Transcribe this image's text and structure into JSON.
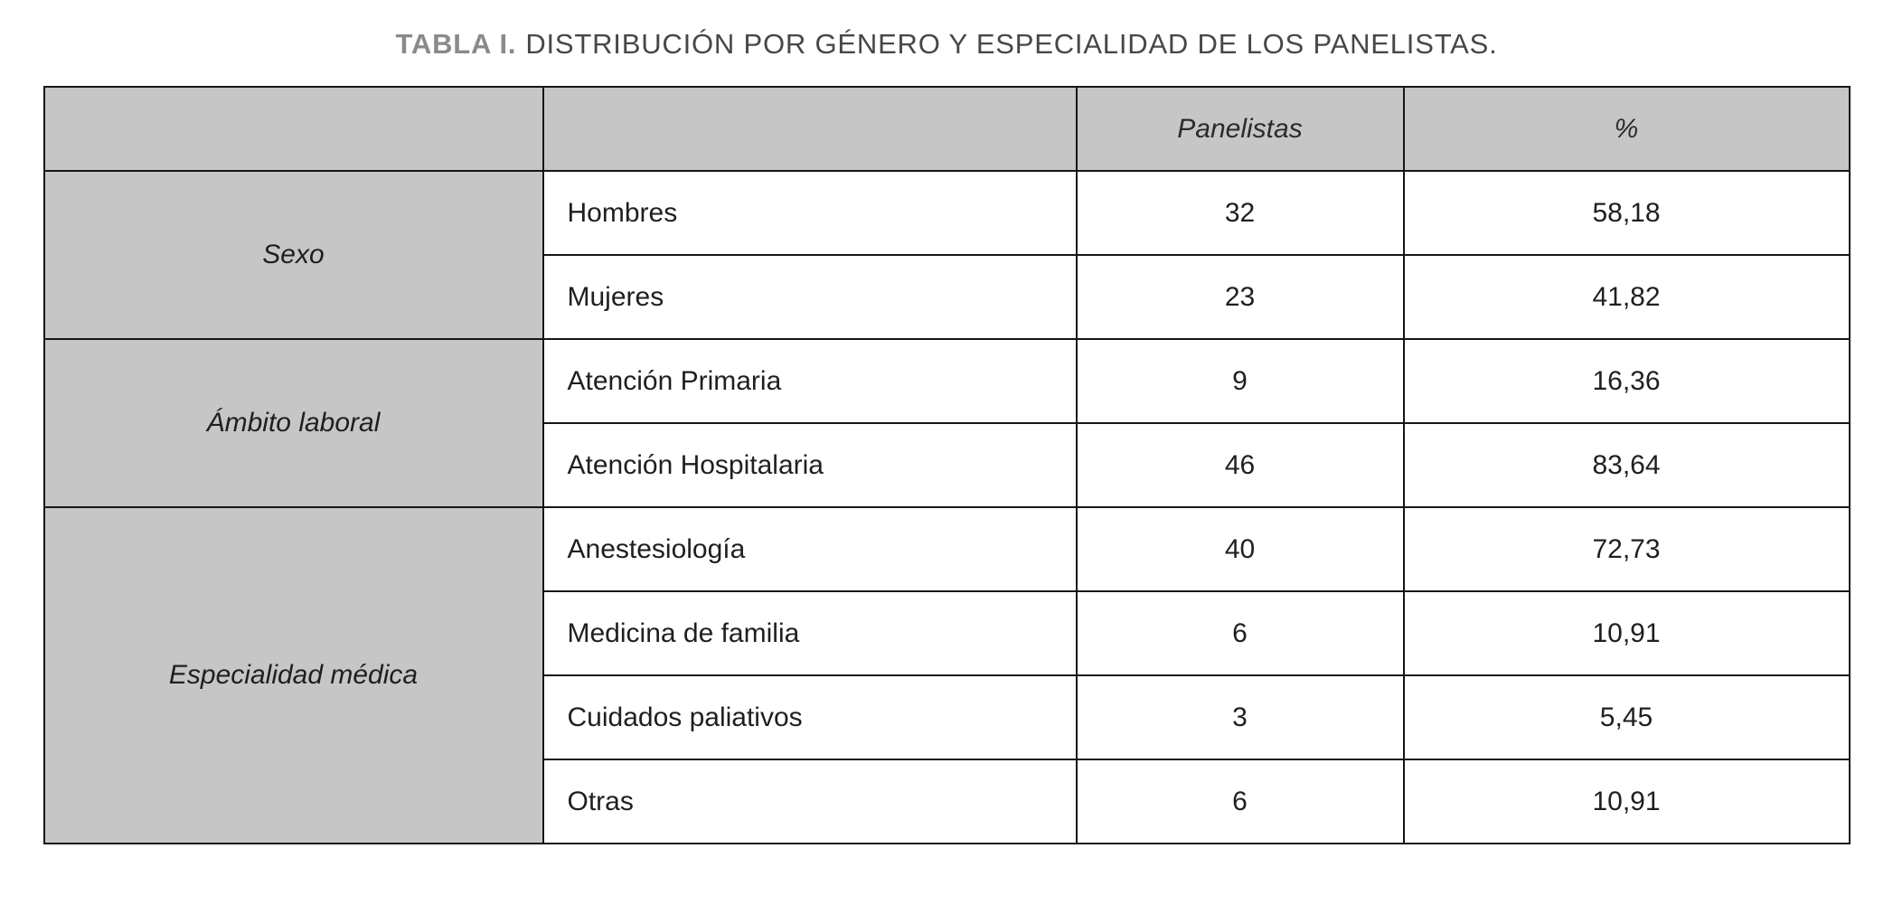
{
  "title": {
    "prefix": "TABLA I.",
    "text": "DISTRIBUCIÓN POR GÉNERO Y ESPECIALIDAD DE LOS PANELISTAS."
  },
  "table": {
    "headers": {
      "group": "",
      "category": "",
      "panelistas": "Panelistas",
      "percent": "%"
    },
    "groups": [
      {
        "label": "Sexo",
        "rows": [
          {
            "category": "Hombres",
            "panelistas": "32",
            "percent": "58,18"
          },
          {
            "category": "Mujeres",
            "panelistas": "23",
            "percent": "41,82"
          }
        ]
      },
      {
        "label": "Ámbito laboral",
        "rows": [
          {
            "category": "Atención Primaria",
            "panelistas": "9",
            "percent": "16,36"
          },
          {
            "category": "Atención Hospitalaria",
            "panelistas": "46",
            "percent": "83,64"
          }
        ]
      },
      {
        "label": "Especialidad médica",
        "rows": [
          {
            "category": "Anestesiología",
            "panelistas": "40",
            "percent": "72,73"
          },
          {
            "category": "Medicina de familia",
            "panelistas": "6",
            "percent": "10,91"
          },
          {
            "category": "Cuidados paliativos",
            "panelistas": "3",
            "percent": "5,45"
          },
          {
            "category": "Otras",
            "panelistas": "6",
            "percent": "10,91"
          }
        ]
      }
    ]
  },
  "colors": {
    "header_bg": "#c6c6c6",
    "border": "#161616",
    "title_accent": "#8a8a8a",
    "title_text": "#474747",
    "body_text": "#1f1f1f"
  }
}
